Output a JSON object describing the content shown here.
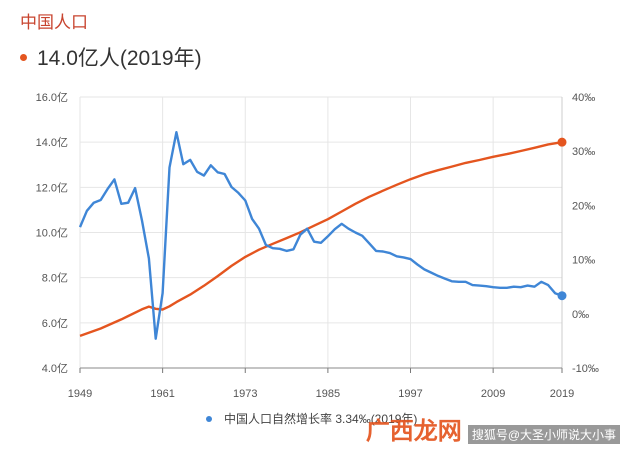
{
  "title": "中国人口",
  "headline": "14.0亿人(2019年)",
  "legend": "中国人口自然增长率 3.34‰(2019年)",
  "watermark": {
    "site": "广西龙网",
    "author": "搜狐号@大圣小师说大小事"
  },
  "colors": {
    "population": "#e4551f",
    "growth": "#3f86d6",
    "title": "#c8442f"
  },
  "chart_data": {
    "type": "line",
    "x_ticks": [
      1949,
      1961,
      1973,
      1985,
      1997,
      2009,
      2019
    ],
    "left_axis": {
      "ticks": [
        "4.0亿",
        "6.0亿",
        "8.0亿",
        "10.0亿",
        "12.0亿",
        "14.0亿",
        "16.0亿"
      ],
      "range": [
        4,
        16
      ]
    },
    "right_axis": {
      "ticks": [
        "-10‰",
        "0‰",
        "10‰",
        "20‰",
        "30‰",
        "40‰"
      ],
      "range": [
        -10,
        40
      ]
    },
    "grid": true,
    "series": [
      {
        "axis": "left",
        "points": [
          [
            1949,
            5.42
          ],
          [
            1952,
            5.75
          ],
          [
            1955,
            6.15
          ],
          [
            1958,
            6.6
          ],
          [
            1959,
            6.72
          ],
          [
            1960,
            6.62
          ],
          [
            1961,
            6.59
          ],
          [
            1962,
            6.73
          ],
          [
            1963,
            6.92
          ],
          [
            1965,
            7.25
          ],
          [
            1967,
            7.64
          ],
          [
            1969,
            8.07
          ],
          [
            1971,
            8.52
          ],
          [
            1973,
            8.92
          ],
          [
            1975,
            9.24
          ],
          [
            1977,
            9.5
          ],
          [
            1979,
            9.75
          ],
          [
            1981,
            10.01
          ],
          [
            1983,
            10.3
          ],
          [
            1985,
            10.59
          ],
          [
            1987,
            10.93
          ],
          [
            1989,
            11.27
          ],
          [
            1991,
            11.58
          ],
          [
            1993,
            11.85
          ],
          [
            1995,
            12.11
          ],
          [
            1997,
            12.36
          ],
          [
            1999,
            12.58
          ],
          [
            2001,
            12.76
          ],
          [
            2003,
            12.92
          ],
          [
            2005,
            13.08
          ],
          [
            2007,
            13.21
          ],
          [
            2009,
            13.35
          ],
          [
            2011,
            13.47
          ],
          [
            2013,
            13.61
          ],
          [
            2015,
            13.75
          ],
          [
            2017,
            13.9
          ],
          [
            2019,
            14.0
          ]
        ]
      },
      {
        "name": "中国人口自然增长率",
        "axis": "right",
        "points": [
          [
            1949,
            16
          ],
          [
            1950,
            19
          ],
          [
            1951,
            20.5
          ],
          [
            1952,
            21
          ],
          [
            1953,
            23
          ],
          [
            1954,
            24.8
          ],
          [
            1955,
            20.3
          ],
          [
            1956,
            20.5
          ],
          [
            1957,
            23.2
          ],
          [
            1958,
            17.2
          ],
          [
            1959,
            10.2
          ],
          [
            1960,
            -4.6
          ],
          [
            1961,
            3.8
          ],
          [
            1962,
            27
          ],
          [
            1963,
            33.5
          ],
          [
            1964,
            27.6
          ],
          [
            1965,
            28.4
          ],
          [
            1966,
            26.2
          ],
          [
            1967,
            25.5
          ],
          [
            1968,
            27.4
          ],
          [
            1969,
            26.1
          ],
          [
            1970,
            25.8
          ],
          [
            1971,
            23.4
          ],
          [
            1972,
            22.3
          ],
          [
            1973,
            20.9
          ],
          [
            1974,
            17.5
          ],
          [
            1975,
            15.7
          ],
          [
            1976,
            12.7
          ],
          [
            1977,
            12.1
          ],
          [
            1978,
            12
          ],
          [
            1979,
            11.6
          ],
          [
            1980,
            11.9
          ],
          [
            1981,
            14.6
          ],
          [
            1982,
            15.7
          ],
          [
            1983,
            13.3
          ],
          [
            1984,
            13.1
          ],
          [
            1985,
            14.3
          ],
          [
            1986,
            15.6
          ],
          [
            1987,
            16.6
          ],
          [
            1988,
            15.7
          ],
          [
            1989,
            15
          ],
          [
            1990,
            14.4
          ],
          [
            1991,
            13
          ],
          [
            1992,
            11.6
          ],
          [
            1993,
            11.5
          ],
          [
            1994,
            11.2
          ],
          [
            1995,
            10.6
          ],
          [
            1996,
            10.4
          ],
          [
            1997,
            10.1
          ],
          [
            1998,
            9.1
          ],
          [
            1999,
            8.2
          ],
          [
            2000,
            7.6
          ],
          [
            2001,
            7
          ],
          [
            2002,
            6.5
          ],
          [
            2003,
            6
          ],
          [
            2004,
            5.9
          ],
          [
            2005,
            5.9
          ],
          [
            2006,
            5.3
          ],
          [
            2007,
            5.2
          ],
          [
            2008,
            5.1
          ],
          [
            2009,
            4.9
          ],
          [
            2010,
            4.8
          ],
          [
            2011,
            4.8
          ],
          [
            2012,
            5
          ],
          [
            2013,
            4.9
          ],
          [
            2014,
            5.2
          ],
          [
            2015,
            5
          ],
          [
            2016,
            5.9
          ],
          [
            2017,
            5.3
          ],
          [
            2018,
            3.8
          ],
          [
            2019,
            3.34
          ]
        ]
      }
    ]
  }
}
